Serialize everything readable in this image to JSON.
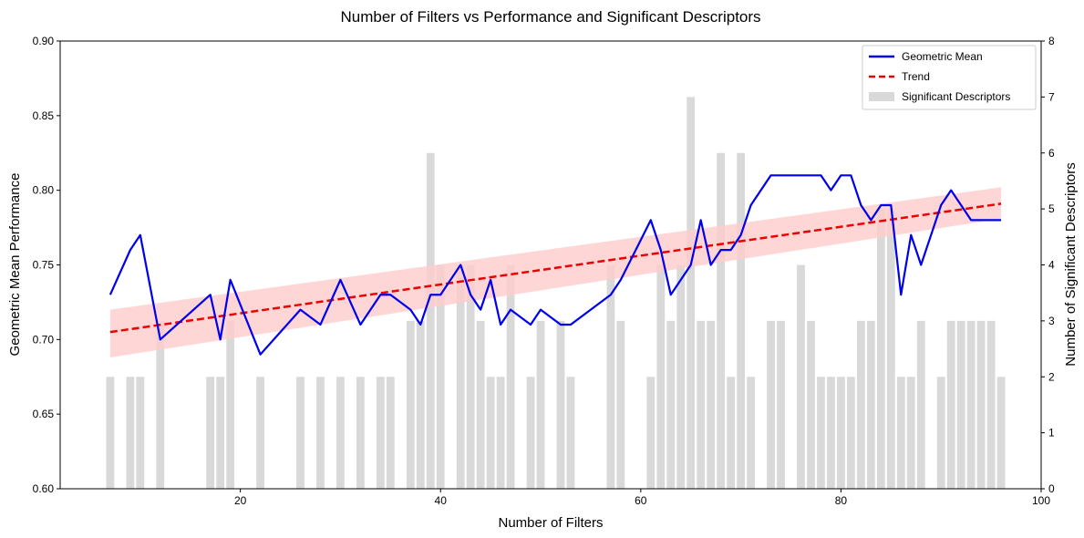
{
  "chart_data": {
    "type": "line",
    "title": "Number of Filters vs Performance and Significant Descriptors",
    "xlabel": "Number of Filters",
    "ylabel": "Geometric Mean Performance",
    "y2label": "Number of Significant Descriptors",
    "xlim": [
      2,
      100
    ],
    "ylim": [
      0.6,
      0.9
    ],
    "y2lim": [
      0,
      8
    ],
    "xticks": [
      20,
      40,
      60,
      80,
      100
    ],
    "yticks": [
      0.6,
      0.65,
      0.7,
      0.75,
      0.8,
      0.85,
      0.9
    ],
    "y2ticks": [
      0,
      1,
      2,
      3,
      4,
      5,
      6,
      7,
      8
    ],
    "grid": false,
    "legend_position": "top-right",
    "legend": {
      "geo_label": "Geometric Mean",
      "trend_label": "Trend",
      "desc_label": "Significant Descriptors"
    },
    "colors": {
      "geo": "#0000ee",
      "trend": "#ee0000",
      "band": "#ffcccc",
      "bars": "#d9d9d9"
    },
    "geometric_mean": {
      "x": [
        7,
        9,
        10,
        12,
        17,
        18,
        19,
        22,
        26,
        28,
        30,
        32,
        34,
        35,
        37,
        38,
        39,
        40,
        42,
        43,
        44,
        45,
        46,
        47,
        49,
        50,
        52,
        53,
        57,
        58,
        61,
        62,
        63,
        65,
        66,
        67,
        68,
        69,
        70,
        71,
        73,
        74,
        75,
        76,
        77,
        78,
        79,
        80,
        81,
        82,
        83,
        84,
        85,
        86,
        87,
        88,
        90,
        91,
        93,
        94,
        95,
        96
      ],
      "y": [
        0.73,
        0.76,
        0.77,
        0.7,
        0.73,
        0.7,
        0.74,
        0.69,
        0.72,
        0.71,
        0.74,
        0.71,
        0.73,
        0.73,
        0.72,
        0.71,
        0.73,
        0.73,
        0.75,
        0.73,
        0.72,
        0.74,
        0.71,
        0.72,
        0.71,
        0.72,
        0.71,
        0.71,
        0.73,
        0.74,
        0.78,
        0.76,
        0.73,
        0.75,
        0.78,
        0.75,
        0.76,
        0.76,
        0.77,
        0.79,
        0.81,
        0.81,
        0.81,
        0.81,
        0.81,
        0.81,
        0.8,
        0.81,
        0.81,
        0.79,
        0.78,
        0.79,
        0.79,
        0.73,
        0.77,
        0.75,
        0.79,
        0.8,
        0.78,
        0.78,
        0.78,
        0.78
      ]
    },
    "trend": {
      "x": [
        7,
        96
      ],
      "y": [
        0.705,
        0.791
      ],
      "band_lower": [
        0.688,
        0.781
      ],
      "band_upper": [
        0.72,
        0.802
      ]
    },
    "significant_descriptors": {
      "x": [
        7,
        9,
        10,
        12,
        17,
        18,
        19,
        22,
        26,
        28,
        30,
        32,
        34,
        35,
        37,
        38,
        39,
        40,
        42,
        43,
        44,
        45,
        46,
        47,
        49,
        50,
        52,
        53,
        57,
        58,
        61,
        62,
        63,
        64,
        65,
        66,
        67,
        68,
        69,
        70,
        71,
        73,
        74,
        76,
        77,
        78,
        79,
        80,
        81,
        82,
        83,
        84,
        85,
        86,
        87,
        88,
        90,
        91,
        92,
        93,
        94,
        95,
        96
      ],
      "values": [
        2,
        2,
        2,
        3,
        2,
        2,
        3,
        2,
        2,
        2,
        2,
        2,
        2,
        2,
        3,
        3,
        6,
        4,
        4,
        4,
        3,
        2,
        2,
        4,
        2,
        3,
        3,
        2,
        4,
        3,
        2,
        4,
        3,
        4,
        7,
        3,
        3,
        6,
        2,
        6,
        2,
        3,
        3,
        4,
        3,
        2,
        2,
        2,
        2,
        3,
        3,
        5,
        5,
        2,
        2,
        3,
        2,
        3,
        3,
        3,
        3,
        3,
        2
      ]
    }
  }
}
